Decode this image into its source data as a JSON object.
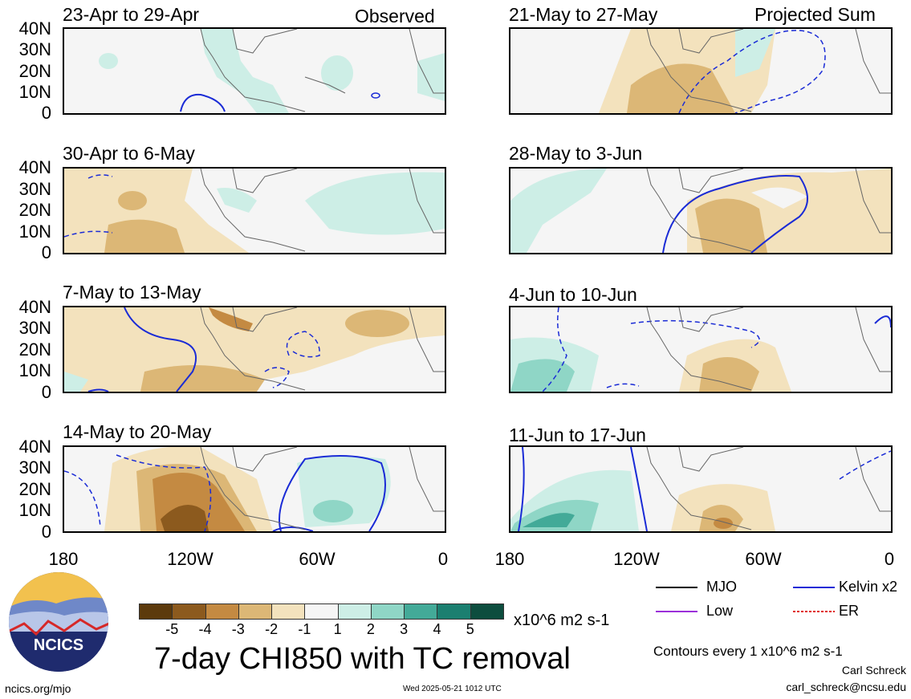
{
  "chart_data": {
    "type": "heatmap",
    "title": "7-day CHI850 with TC removal",
    "xlim": [
      "180",
      "0"
    ],
    "xticks": [
      "180",
      "120W",
      "60W",
      "0"
    ],
    "yticks": [
      "40N",
      "30N",
      "20N",
      "10N",
      "0"
    ],
    "observed_label": "Observed",
    "projected_label": "Projected Sum",
    "panels": [
      {
        "period": "23-Apr to 29-Apr",
        "column": "Observed"
      },
      {
        "period": "30-Apr to 6-May",
        "column": "Observed"
      },
      {
        "period": "7-May to 13-May",
        "column": "Observed"
      },
      {
        "period": "14-May to 20-May",
        "column": "Observed"
      },
      {
        "period": "21-May to 27-May",
        "column": "Projected Sum"
      },
      {
        "period": "28-May to 3-Jun",
        "column": "Projected Sum"
      },
      {
        "period": "4-Jun to 10-Jun",
        "column": "Projected Sum"
      },
      {
        "period": "11-Jun to 17-Jun",
        "column": "Projected Sum"
      }
    ],
    "colorbar": {
      "labels": [
        "-5",
        "-4",
        "-3",
        "-2",
        "-1",
        "1",
        "2",
        "3",
        "4",
        "5"
      ],
      "colors": [
        "#5c3a0c",
        "#8c5a1e",
        "#c48a42",
        "#dcb776",
        "#f3e2bd",
        "#f5f5f5",
        "#cdeee6",
        "#8fd6c6",
        "#43aa98",
        "#1b7f70",
        "#0d4d3e"
      ],
      "units": "x10^6 m2 s-1"
    },
    "legend": [
      {
        "label": "MJO",
        "color": "#000000"
      },
      {
        "label": "Kelvin x2",
        "color": "#1a2bd6"
      },
      {
        "label": "Low",
        "color": "#9b30d9"
      },
      {
        "label": "ER",
        "color": "#e0241a"
      }
    ],
    "contour_note": "Contours every 1 x10^6 m2 s-1"
  },
  "footer": {
    "site": "ncics.org/mjo",
    "timestamp": "Wed 2025-05-21 1012 UTC",
    "author": "Carl Schreck",
    "email": "carl_schreck@ncsu.edu"
  },
  "logo": {
    "text": "NCICS"
  }
}
